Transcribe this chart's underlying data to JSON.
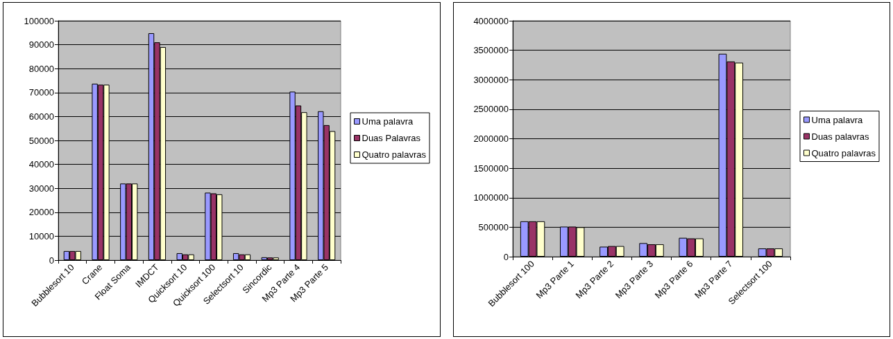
{
  "chart_data": [
    {
      "type": "bar",
      "categories": [
        "Bubblesort 10",
        "Crane",
        "Float Soma",
        "IMDCT",
        "Quicksort 10",
        "Quicksort 100",
        "Selectsort 10",
        "Sincordic",
        "Mp3 Parte 4",
        "Mp3 Parte 5"
      ],
      "series": [
        {
          "name": "Uma palavra",
          "color": "#9999ff",
          "values": [
            3800,
            73700,
            32000,
            94800,
            2900,
            28200,
            2900,
            1200,
            70400,
            62200
          ]
        },
        {
          "name": "Duas Palavras",
          "color": "#993366",
          "values": [
            3800,
            73300,
            32000,
            91000,
            2400,
            27900,
            2400,
            1100,
            64600,
            56400
          ]
        },
        {
          "name": "Quatro palavras",
          "color": "#ffffcc",
          "values": [
            3800,
            73300,
            32000,
            89000,
            2400,
            27500,
            2400,
            1100,
            61800,
            53900
          ]
        }
      ],
      "ylim": [
        0,
        100000
      ],
      "yticks": [
        0,
        10000,
        20000,
        30000,
        40000,
        50000,
        60000,
        70000,
        80000,
        90000,
        100000
      ],
      "grid": "y",
      "legend": "right"
    },
    {
      "type": "bar",
      "categories": [
        "Bubblesort 100",
        "Mp3 Parte 1",
        "Mp3 Parte 2",
        "Mp3 Parte 3",
        "Mp3 Parte 6",
        "Mp3 Parte 7",
        "Selectsort 100"
      ],
      "series": [
        {
          "name": "Uma palavra",
          "color": "#9999ff",
          "values": [
            600000,
            510000,
            170000,
            230000,
            320000,
            3440000,
            140000
          ]
        },
        {
          "name": "Duas palavras",
          "color": "#993366",
          "values": [
            600000,
            510000,
            180000,
            210000,
            310000,
            3310000,
            140000
          ]
        },
        {
          "name": "Quatro palavras",
          "color": "#ffffcc",
          "values": [
            600000,
            500000,
            180000,
            210000,
            310000,
            3290000,
            140000
          ]
        }
      ],
      "ylim": [
        0,
        4000000
      ],
      "yticks": [
        0,
        500000,
        1000000,
        1500000,
        2000000,
        2500000,
        3000000,
        3500000,
        4000000
      ],
      "grid": "y",
      "legend": "right"
    }
  ]
}
